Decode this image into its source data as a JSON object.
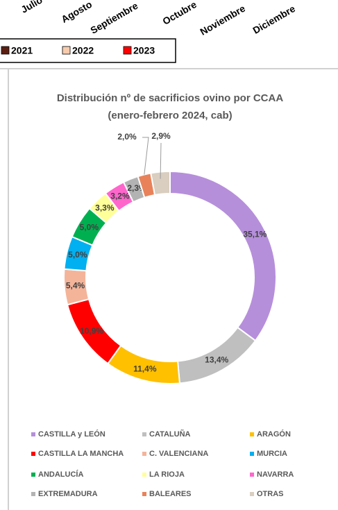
{
  "chart_data": [
    {
      "type": "bar",
      "categories": [
        "Julio",
        "Agosto",
        "Septiembre",
        "Octubre",
        "Noviembre",
        "Diciembre"
      ],
      "series": [
        {
          "name": "2021",
          "color": "#5b1f12"
        },
        {
          "name": "2022",
          "color": "#f8cbad"
        },
        {
          "name": "2023",
          "color": "#ff0000"
        }
      ]
    },
    {
      "type": "pie",
      "title": "Distribución  nº de sacrificios ovino por CCAA",
      "subtitle": "(enero-febrero 2024, cab)",
      "categories": [
        "CASTILLA y LEÓN",
        "CATALUÑA",
        "ARAGÓN",
        "CASTILLA LA MANCHA",
        "C. VALENCIANA",
        "MURCIA",
        "ANDALUCÍA",
        "LA RIOJA",
        "NAVARRA",
        "EXTREMADURA",
        "BALEARES",
        "OTRAS"
      ],
      "values": [
        35.1,
        13.4,
        11.4,
        10.9,
        5.4,
        5.0,
        5.0,
        3.3,
        3.2,
        2.3,
        2.0,
        2.9
      ],
      "value_labels": [
        "35,1%",
        "13,4%",
        "11,4%",
        "10,9%",
        "5,4%",
        "5,0%",
        "5,0%",
        "3,3%",
        "3,2%",
        "2,3%",
        "2,0%",
        "2,9%"
      ],
      "colors": [
        "#b68fdb",
        "#bfbfbf",
        "#ffc000",
        "#ff0000",
        "#f4b49a",
        "#00b0f0",
        "#00b050",
        "#ffff99",
        "#ff66cc",
        "#b3b3b3",
        "#e9825a",
        "#d9cebf"
      ]
    }
  ]
}
